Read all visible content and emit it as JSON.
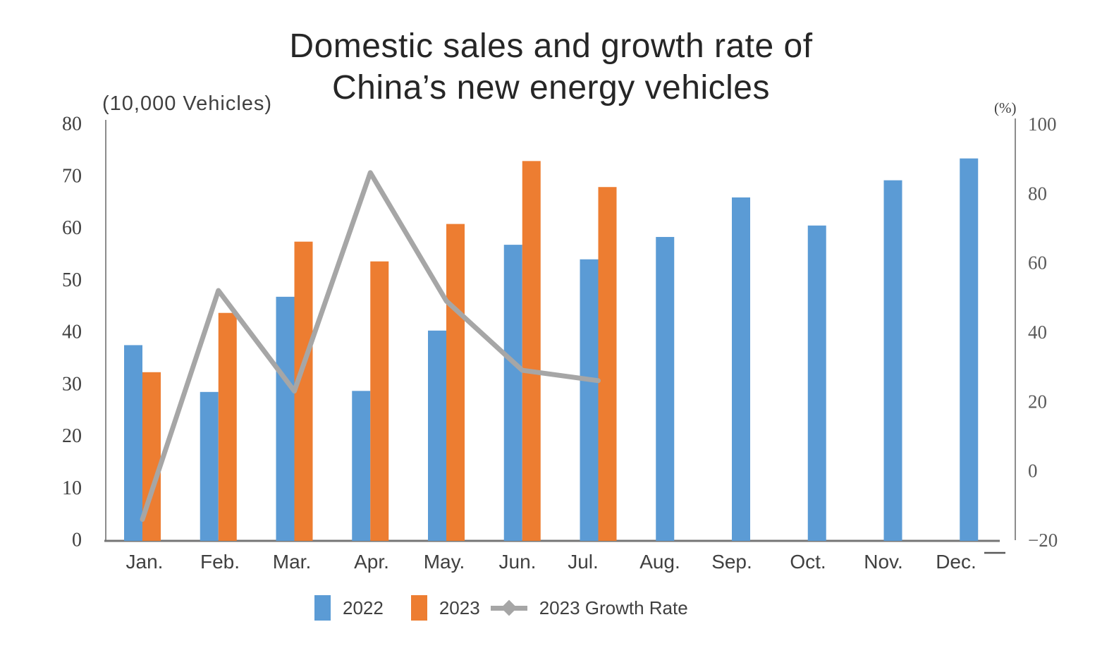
{
  "title": {
    "line1": "Domestic sales and growth rate of",
    "line2": "China’s new energy vehicles"
  },
  "left_axis": {
    "unit_label": "(10,000 Vehicles)",
    "ticks": [
      80,
      70,
      60,
      50,
      40,
      30,
      20,
      10,
      0
    ],
    "min": 0,
    "max": 80,
    "text_color": "#404040"
  },
  "right_axis": {
    "unit_label": "(%)",
    "ticks": [
      100,
      80,
      60,
      40,
      20,
      0,
      -20
    ],
    "min": -20,
    "max": 100,
    "text_color": "#595959",
    "negative_color": "#FF0000"
  },
  "legend": {
    "items": [
      {
        "label": "2022",
        "swatch": "#5B9BD5",
        "type": "bar"
      },
      {
        "label": "2023",
        "swatch": "#ED7D31",
        "type": "bar"
      },
      {
        "label": "2023 Growth Rate",
        "swatch": "#A6A6A6",
        "type": "line"
      }
    ]
  },
  "chart_data": {
    "type": "bar",
    "subtype": "grouped-bars-with-line",
    "title": "Domestic sales and growth rate of China’s new energy vehicles",
    "categories": [
      "Jan.",
      "Feb.",
      "Mar.",
      "Apr.",
      "May.",
      "Jun.",
      "Jul.",
      "Aug.",
      "Sep.",
      "Oct.",
      "Nov.",
      "Dec."
    ],
    "series": [
      {
        "name": "2022",
        "type": "bar",
        "axis": "left",
        "color": "#5B9BD5",
        "values": [
          37.5,
          28.5,
          46.8,
          28.7,
          40.3,
          56.8,
          54.0,
          58.3,
          65.9,
          60.5,
          69.2,
          73.4
        ]
      },
      {
        "name": "2023",
        "type": "bar",
        "axis": "left",
        "color": "#ED7D31",
        "values": [
          32.3,
          43.7,
          57.4,
          53.6,
          60.8,
          72.9,
          67.9,
          null,
          null,
          null,
          null,
          null
        ]
      },
      {
        "name": "2023 Growth Rate",
        "type": "line",
        "axis": "right",
        "color": "#A6A6A6",
        "values": [
          -14,
          52,
          23,
          86,
          49,
          29,
          26,
          null,
          null,
          null,
          null,
          null
        ]
      }
    ],
    "left_ylabel": "(10,000 Vehicles)",
    "right_ylabel": "(%)",
    "left_ylim": [
      0,
      80
    ],
    "right_ylim": [
      -20,
      100
    ],
    "grid": false,
    "legend_position": "bottom"
  }
}
